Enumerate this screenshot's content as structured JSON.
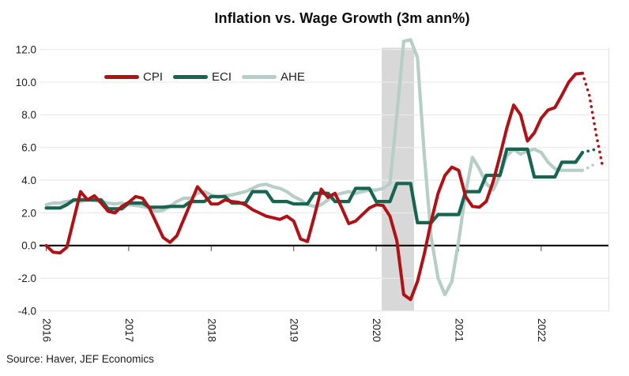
{
  "title": "Inflation vs. Wage Growth (3m ann%)",
  "source": "Source: Haver, JEF Economics",
  "legend": [
    {
      "label": "CPI",
      "color": "#b01116"
    },
    {
      "label": "ECI",
      "color": "#17654f"
    },
    {
      "label": "AHE",
      "color": "#b7cec6"
    }
  ],
  "colors": {
    "band": "#d8d8d8",
    "grid": "#eaeaea",
    "zero_line": "#141414",
    "tick": "#4a4a4a",
    "axis_text": "#1d1d1d",
    "right_edge": "#e3e3e3"
  },
  "chart_data": {
    "type": "line",
    "title": "Inflation vs. Wage Growth (3m ann%)",
    "xlabel": "",
    "ylabel": "",
    "x_start": "2016-01",
    "frequency": "monthly",
    "ylim": [
      -4,
      12
    ],
    "grid": "horizontal",
    "legend_position": "top-inside",
    "y_ticks": [
      {
        "value": 12,
        "label": "12.0"
      },
      {
        "value": 10,
        "label": "10.0"
      },
      {
        "value": 8,
        "label": "8.0"
      },
      {
        "value": 6,
        "label": "6.0"
      },
      {
        "value": 4,
        "label": "4.0"
      },
      {
        "value": 2,
        "label": "2.0"
      },
      {
        "value": 0,
        "label": "0.0"
      },
      {
        "value": -2,
        "label": "-2.0"
      },
      {
        "value": -4,
        "label": "-4.0"
      }
    ],
    "x_ticks": [
      {
        "month_index": 0,
        "label": "2016"
      },
      {
        "month_index": 12,
        "label": "2017"
      },
      {
        "month_index": 24,
        "label": "2018"
      },
      {
        "month_index": 36,
        "label": "2019"
      },
      {
        "month_index": 48,
        "label": "2020"
      },
      {
        "month_index": 60,
        "label": "2021"
      },
      {
        "month_index": 72,
        "label": "2022"
      }
    ],
    "recession_band": {
      "start_month_index": 48.8,
      "end_month_index": 53.5
    },
    "series": [
      {
        "name": "CPI",
        "color": "#b01116",
        "width": 4,
        "dotted_from_index": 78,
        "values": [
          0.0,
          -0.4,
          -0.45,
          -0.1,
          1.6,
          3.3,
          2.8,
          3.05,
          2.6,
          2.1,
          2.0,
          2.4,
          2.65,
          3.0,
          2.9,
          2.3,
          1.4,
          0.5,
          0.2,
          0.6,
          1.6,
          2.6,
          3.6,
          3.1,
          2.55,
          2.55,
          2.8,
          2.7,
          2.65,
          2.5,
          2.2,
          2.0,
          1.8,
          1.7,
          1.6,
          1.8,
          1.5,
          0.4,
          0.25,
          1.8,
          3.45,
          2.95,
          3.2,
          2.3,
          1.35,
          1.5,
          1.9,
          2.3,
          2.5,
          2.45,
          1.8,
          0.3,
          -3.0,
          -3.3,
          -2.2,
          -0.5,
          1.5,
          3.2,
          4.3,
          4.8,
          4.6,
          3.0,
          2.4,
          2.35,
          2.7,
          3.9,
          5.5,
          7.2,
          8.6,
          8.0,
          6.4,
          6.9,
          7.8,
          8.3,
          8.45,
          9.2,
          10.0,
          10.5,
          10.55,
          9.2,
          6.8,
          4.7
        ]
      },
      {
        "name": "ECI",
        "color": "#17654f",
        "width": 4.2,
        "dotted_from_index": 78,
        "values": [
          2.3,
          2.3,
          2.3,
          2.5,
          2.8,
          2.8,
          2.8,
          2.8,
          2.8,
          2.25,
          2.25,
          2.25,
          2.6,
          2.6,
          2.6,
          2.35,
          2.35,
          2.35,
          2.4,
          2.4,
          2.4,
          2.7,
          2.7,
          2.7,
          3.0,
          3.0,
          3.0,
          2.6,
          2.6,
          2.6,
          3.3,
          3.3,
          3.3,
          2.7,
          2.7,
          2.7,
          2.55,
          2.55,
          2.55,
          3.2,
          3.2,
          3.2,
          2.7,
          2.7,
          2.7,
          3.5,
          3.5,
          3.5,
          2.7,
          2.7,
          2.7,
          3.8,
          3.8,
          3.8,
          1.4,
          1.4,
          1.4,
          1.9,
          1.9,
          1.9,
          1.9,
          3.3,
          3.3,
          3.3,
          4.3,
          4.3,
          4.3,
          5.9,
          5.9,
          5.9,
          5.9,
          4.2,
          4.2,
          4.2,
          4.2,
          5.1,
          5.1,
          5.1,
          5.7,
          5.8,
          5.9
        ]
      },
      {
        "name": "AHE",
        "color": "#b7cec6",
        "width": 4.2,
        "dotted_from_index": 78,
        "values": [
          2.5,
          2.6,
          2.6,
          2.7,
          2.75,
          2.7,
          2.8,
          2.75,
          2.7,
          2.6,
          2.55,
          2.6,
          2.5,
          2.45,
          2.4,
          2.3,
          2.1,
          2.15,
          2.4,
          2.7,
          2.9,
          2.9,
          3.2,
          3.3,
          3.1,
          2.95,
          3.05,
          3.1,
          3.2,
          3.3,
          3.5,
          3.7,
          3.75,
          3.6,
          3.5,
          3.3,
          3.0,
          2.8,
          2.5,
          2.4,
          2.5,
          2.8,
          3.1,
          3.2,
          3.3,
          3.2,
          3.3,
          3.4,
          3.4,
          3.5,
          3.8,
          8.0,
          12.5,
          12.6,
          11.5,
          5.5,
          0.5,
          -2.0,
          -3.0,
          -2.2,
          0.3,
          3.2,
          5.4,
          4.7,
          3.8,
          3.4,
          4.3,
          5.5,
          5.9,
          5.6,
          5.8,
          5.9,
          5.7,
          5.1,
          4.7,
          4.6,
          4.6,
          4.6,
          4.6,
          4.8,
          5.05
        ]
      }
    ]
  }
}
